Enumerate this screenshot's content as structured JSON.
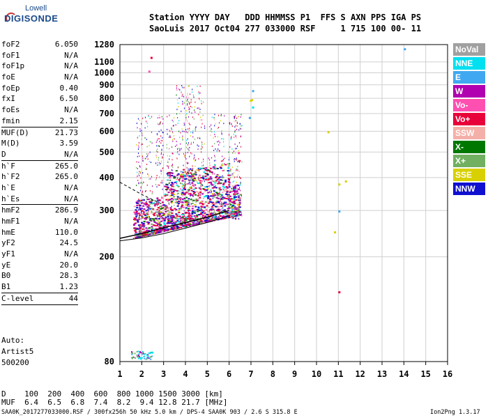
{
  "logo": {
    "line1": "Lowell",
    "line2": "DIGISONDE"
  },
  "header": {
    "row1": "Station YYYY DAY   DDD HHMMSS P1  FFS S AXN PPS IGA PS",
    "row2": "SaoLuis 2017 Oct04 277 033000 RSF     1 715 100 00- 11"
  },
  "params": [
    {
      "label": "foF2",
      "value": "6.050"
    },
    {
      "label": "foF1",
      "value": "N/A"
    },
    {
      "label": "foF1p",
      "value": "N/A"
    },
    {
      "label": "foE",
      "value": "N/A"
    },
    {
      "label": "foEp",
      "value": "0.40"
    },
    {
      "label": "fxI",
      "value": "6.50"
    },
    {
      "label": "foEs",
      "value": "N/A"
    },
    {
      "label": "fmin",
      "value": "2.15"
    },
    {
      "sep": true
    },
    {
      "label": "MUF(D)",
      "value": "21.73"
    },
    {
      "label": "M(D)",
      "value": "3.59"
    },
    {
      "label": "D",
      "value": "N/A"
    },
    {
      "sep": true
    },
    {
      "label": "h`F",
      "value": "265.0"
    },
    {
      "label": "h`F2",
      "value": "265.0"
    },
    {
      "label": "h`E",
      "value": "N/A"
    },
    {
      "label": "h`Es",
      "value": "N/A"
    },
    {
      "sep": true
    },
    {
      "label": "hmF2",
      "value": "286.9"
    },
    {
      "label": "hmF1",
      "value": "N/A"
    },
    {
      "label": "hmE",
      "value": "110.0"
    },
    {
      "label": "yF2",
      "value": "24.5"
    },
    {
      "label": "yF1",
      "value": "N/A"
    },
    {
      "label": "yE",
      "value": "20.0"
    },
    {
      "label": "B0",
      "value": "28.3"
    },
    {
      "label": "B1",
      "value": "1.23"
    },
    {
      "sep": true
    },
    {
      "label": "C-level",
      "value": "44"
    },
    {
      "sep": true
    }
  ],
  "auto": {
    "line1": "Auto:",
    "line2": "Artist5",
    "line3": "500200"
  },
  "legend": [
    {
      "label": "NoVal",
      "color": "#a0a0a0"
    },
    {
      "label": "NNE",
      "color": "#00e0f0"
    },
    {
      "label": "E",
      "color": "#40a8f0"
    },
    {
      "label": "W",
      "color": "#b000b0"
    },
    {
      "label": "Vo-",
      "color": "#ff4fb0"
    },
    {
      "label": "Vo+",
      "color": "#e8003a"
    },
    {
      "label": "SSW",
      "color": "#f4b0a8"
    },
    {
      "label": "X-",
      "color": "#007800"
    },
    {
      "label": "X+",
      "color": "#70b060"
    },
    {
      "label": "SSE",
      "color": "#d8d000"
    },
    {
      "label": "NNW",
      "color": "#1010d0"
    }
  ],
  "chart_data": {
    "type": "scatter",
    "xlabel": "",
    "ylabel": "",
    "xlim": [
      1,
      16
    ],
    "x_ticks": [
      "1",
      "2",
      "3",
      "4",
      "5",
      "6",
      "7",
      "8",
      "9",
      "10",
      "11",
      "12",
      "13",
      "14",
      "15",
      "16"
    ],
    "y_ticks": [
      80,
      200,
      300,
      400,
      500,
      600,
      700,
      800,
      900,
      1000,
      1100,
      1280
    ],
    "y_scale": "log",
    "ylim": [
      80,
      1280
    ],
    "grid": true,
    "series": [
      {
        "name": "h'F trace (virtual height)",
        "values": [
          [
            1.0,
            235
          ],
          [
            2.0,
            245
          ],
          [
            3.0,
            258
          ],
          [
            4.0,
            270
          ],
          [
            5.0,
            283
          ],
          [
            6.0,
            300
          ]
        ]
      },
      {
        "name": "profile (real height)",
        "values": [
          [
            1.0,
            230
          ],
          [
            2.0,
            236
          ],
          [
            3.0,
            245
          ],
          [
            4.0,
            257
          ],
          [
            5.0,
            270
          ],
          [
            6.05,
            287
          ]
        ]
      },
      {
        "name": "extrapolated topside",
        "values": [
          [
            1.0,
            384
          ],
          [
            2.0,
            345
          ],
          [
            3.0,
            315
          ]
        ]
      }
    ]
  },
  "footer": {
    "row1": "D    100  200  400  600  800 1000 1500 3000 [km]",
    "row2": "MUF  6.4  6.5  6.8  7.4  8.2  9.4 12.8 21.7 [MHz]",
    "bottom": "SAA0K_2017277033000.RSF / 300fx256h 50 kHz 5.0 km / DPS-4 SAA0K 903 / 2.6 S 315.8 E",
    "version": "Ion2Png 1.3.17"
  }
}
